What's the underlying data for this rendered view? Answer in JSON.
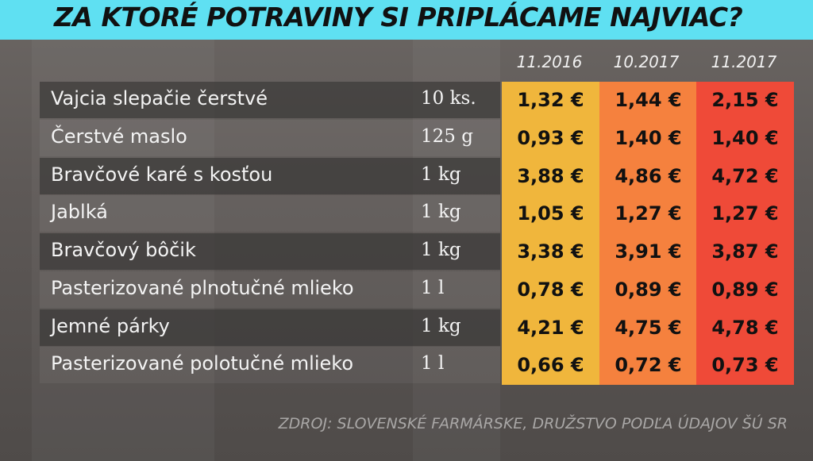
{
  "title": "ZA KTORÉ POTRAVINY SI PRIPLÁCAME NAJVIAC?",
  "columns": [
    "11.2016",
    "10.2017",
    "11.2017"
  ],
  "column_colors": [
    "#f0b63c",
    "#f5813e",
    "#ef4a38"
  ],
  "rows": [
    {
      "name": "Vajcia slepačie čerstvé",
      "unit": "10 ks.",
      "prices": [
        "1,32 €",
        "1,44 €",
        "2,15 €"
      ]
    },
    {
      "name": "Čerstvé maslo",
      "unit": "125 g",
      "prices": [
        "0,93 €",
        "1,40 €",
        "1,40 €"
      ]
    },
    {
      "name": "Bravčové karé s kosťou",
      "unit": "1 kg",
      "prices": [
        "3,88 €",
        "4,86 €",
        "4,72 €"
      ]
    },
    {
      "name": "Jablká",
      "unit": "1 kg",
      "prices": [
        "1,05 €",
        "1,27 €",
        "1,27 €"
      ]
    },
    {
      "name": "Bravčový bôčik",
      "unit": "1 kg",
      "prices": [
        "3,38 €",
        "3,91 €",
        "3,87 €"
      ]
    },
    {
      "name": "Pasterizované plnotučné mlieko",
      "unit": "1 l",
      "prices": [
        "0,78 €",
        "0,89 €",
        "0,89 €"
      ]
    },
    {
      "name": "Jemné párky",
      "unit": "1 kg",
      "prices": [
        "4,21 €",
        "4,75 €",
        "4,78 €"
      ]
    },
    {
      "name": "Pasterizované polotučné mlieko",
      "unit": "1 l",
      "prices": [
        "0,66 €",
        "0,72 €",
        "0,73 €"
      ]
    }
  ],
  "source": "ZDROJ: SLOVENSKÉ FARMÁRSKE, DRUŽSTVO PODĽA ÚDAJOV ŠÚ SR"
}
